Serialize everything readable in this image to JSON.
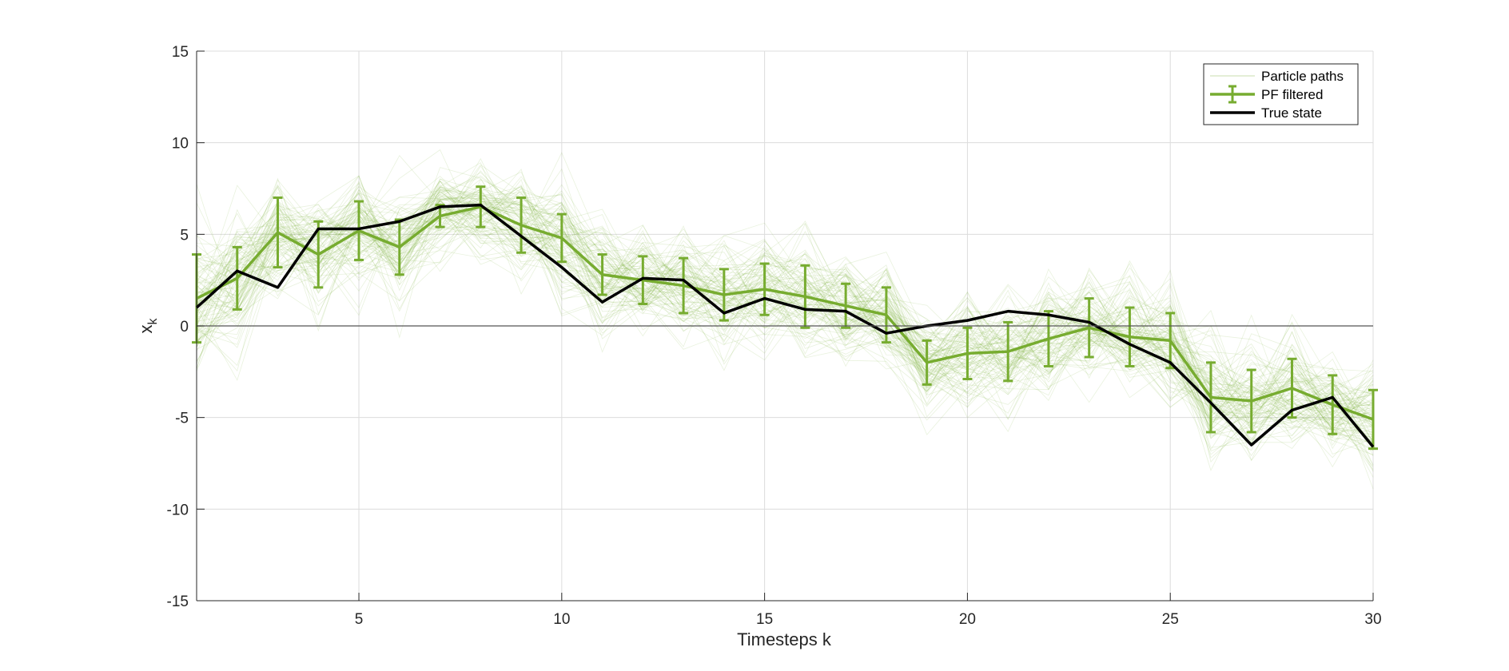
{
  "chart_data": {
    "type": "line",
    "title": "",
    "xlabel": "Timesteps k",
    "ylabel": "x",
    "ylabel_subscript": "k",
    "xlim": [
      1,
      30
    ],
    "ylim": [
      -15,
      15
    ],
    "xticks": [
      5,
      10,
      15,
      20,
      25,
      30
    ],
    "yticks": [
      -15,
      -10,
      -5,
      0,
      5,
      10,
      15
    ],
    "grid": true,
    "zero_line": true,
    "legend_position": "top-right",
    "x": [
      1,
      2,
      3,
      4,
      5,
      6,
      7,
      8,
      9,
      10,
      11,
      12,
      13,
      14,
      15,
      16,
      17,
      18,
      19,
      20,
      21,
      22,
      23,
      24,
      25,
      26,
      27,
      28,
      29,
      30
    ],
    "series": [
      {
        "name": "Particle paths",
        "style": "thin-band",
        "color": "#77ac30",
        "particle_count": 100,
        "spread": [
          3.2,
          2.6,
          2.3,
          2.4,
          2.3,
          2.2,
          2.0,
          1.9,
          2.0,
          2.3,
          2.2,
          2.0,
          2.0,
          2.1,
          2.0,
          2.2,
          2.0,
          2.0,
          2.1,
          2.2,
          2.3,
          2.3,
          2.2,
          2.2,
          2.3,
          2.2,
          2.1,
          2.0,
          2.0,
          2.2
        ]
      },
      {
        "name": "PF filtered",
        "style": "errorbar",
        "color": "#77ac30",
        "values": [
          1.5,
          2.6,
          5.1,
          3.9,
          5.2,
          4.3,
          6.0,
          6.5,
          5.5,
          4.8,
          2.8,
          2.5,
          2.2,
          1.7,
          2.0,
          1.6,
          1.1,
          0.6,
          -2.0,
          -1.5,
          -1.4,
          -0.7,
          -0.1,
          -0.6,
          -0.8,
          -3.9,
          -4.1,
          -3.4,
          -4.3,
          -5.1
        ],
        "err": [
          2.4,
          1.7,
          1.9,
          1.8,
          1.6,
          1.5,
          0.6,
          1.1,
          1.5,
          1.3,
          1.1,
          1.3,
          1.5,
          1.4,
          1.4,
          1.7,
          1.2,
          1.5,
          1.2,
          1.4,
          1.6,
          1.5,
          1.6,
          1.6,
          1.5,
          1.9,
          1.7,
          1.6,
          1.6,
          1.6
        ]
      },
      {
        "name": "True state",
        "style": "line",
        "color": "#000000",
        "values": [
          1.0,
          3.0,
          2.1,
          5.3,
          5.3,
          5.7,
          6.5,
          6.6,
          4.9,
          3.2,
          1.3,
          2.6,
          2.5,
          0.7,
          1.5,
          0.9,
          0.8,
          -0.4,
          0.0,
          0.3,
          0.8,
          0.6,
          0.2,
          -1.0,
          -2.0,
          -4.2,
          -6.5,
          -4.6,
          -3.9,
          -6.6
        ]
      }
    ]
  }
}
